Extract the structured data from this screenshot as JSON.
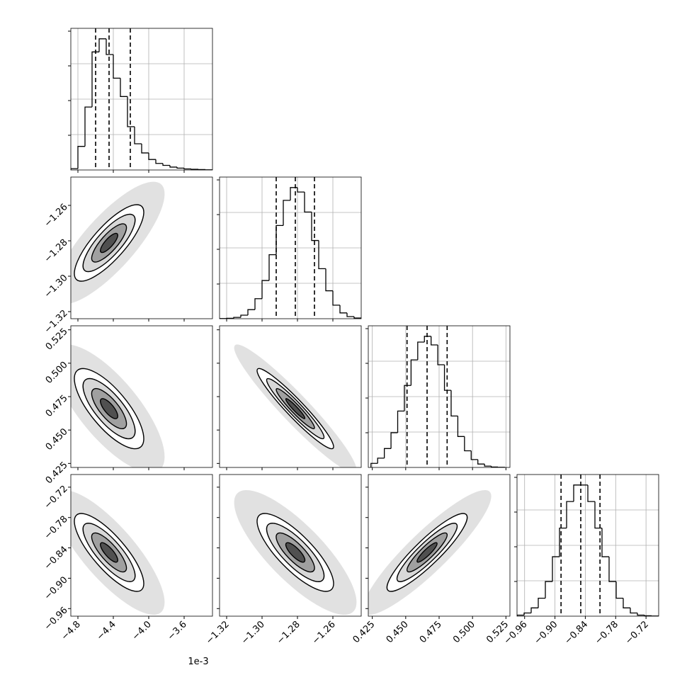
{
  "chart_data": {
    "type": "corner",
    "grid": true,
    "color": "#000000",
    "offset_label": "1e-3",
    "parameters": [
      {
        "xlim": [
          -4.88,
          -3.28
        ],
        "ticks": [
          {
            "value": -4.8,
            "label": "−4.8"
          },
          {
            "value": -4.4,
            "label": "−4.4"
          },
          {
            "value": -4.0,
            "label": "−4.0"
          },
          {
            "value": -3.6,
            "label": "−3.6"
          }
        ],
        "bins": [
          -4.88,
          -4.8,
          -4.72,
          -4.64,
          -4.56,
          -4.48,
          -4.4,
          -4.32,
          -4.24,
          -4.16,
          -4.08,
          -4.0,
          -3.92,
          -3.84,
          -3.76,
          -3.68,
          -3.6,
          -3.52,
          -3.44,
          -3.36,
          -3.28
        ],
        "counts": [
          10,
          180,
          480,
          900,
          1000,
          880,
          700,
          560,
          330,
          200,
          130,
          80,
          50,
          35,
          22,
          14,
          8,
          5,
          3,
          1
        ],
        "quantiles": [
          -4.6,
          -4.448,
          -4.208
        ]
      },
      {
        "xlim": [
          -1.324,
          -1.244
        ],
        "ticks": [
          {
            "value": -1.32,
            "label": "−1.32"
          },
          {
            "value": -1.3,
            "label": "−1.30"
          },
          {
            "value": -1.28,
            "label": "−1.28"
          },
          {
            "value": -1.26,
            "label": "−1.26"
          }
        ],
        "bins": [
          -1.324,
          -1.32,
          -1.316,
          -1.312,
          -1.308,
          -1.304,
          -1.3,
          -1.296,
          -1.292,
          -1.288,
          -1.284,
          -1.28,
          -1.276,
          -1.272,
          -1.268,
          -1.264,
          -1.26,
          -1.256,
          -1.252,
          -1.248,
          -1.244
        ],
        "counts": [
          1,
          3,
          10,
          27,
          69,
          152,
          290,
          486,
          708,
          899,
          996,
          962,
          810,
          594,
          380,
          212,
          103,
          44,
          16,
          5
        ],
        "quantiles": [
          -1.292,
          -1.2812,
          -1.2704
        ]
      },
      {
        "xlim": [
          0.422,
          0.528
        ],
        "ticks": [
          0.425,
          {
            "value": 0.45,
            "label": "0.450"
          },
          0.475,
          {
            "value": 0.5,
            "label": "0.500"
          },
          0.525
        ],
        "bins": [
          0.424,
          0.429,
          0.434,
          0.439,
          0.444,
          0.449,
          0.454,
          0.459,
          0.464,
          0.469,
          0.474,
          0.479,
          0.484,
          0.489,
          0.494,
          0.499,
          0.504,
          0.509,
          0.514,
          0.519,
          0.524
        ],
        "counts": [
          31,
          71,
          144,
          265,
          430,
          625,
          820,
          956,
          1000,
          934,
          783,
          588,
          392,
          236,
          127,
          60,
          26,
          10,
          3,
          1
        ],
        "quantiles": [
          0.451,
          0.466,
          0.481
        ]
      },
      {
        "xlim": [
          -0.975,
          -0.695
        ],
        "ticks": [
          {
            "value": -0.96,
            "label": "−0.96"
          },
          {
            "value": -0.9,
            "label": "−0.90"
          },
          {
            "value": -0.84,
            "label": "−0.84"
          },
          {
            "value": -0.78,
            "label": "−0.78"
          },
          {
            "value": -0.72,
            "label": "−0.72"
          }
        ],
        "bins": [
          -0.975,
          -0.961,
          -0.947,
          -0.933,
          -0.919,
          -0.905,
          -0.891,
          -0.877,
          -0.863,
          -0.849,
          -0.835,
          -0.821,
          -0.807,
          -0.793,
          -0.779,
          -0.765,
          -0.751,
          -0.737,
          -0.723,
          -0.709,
          -0.695
        ],
        "counts": [
          8,
          24,
          62,
          135,
          260,
          446,
          661,
          860,
          984,
          984,
          860,
          661,
          446,
          260,
          135,
          62,
          24,
          8,
          3,
          1
        ],
        "quantiles": [
          -0.888,
          -0.849,
          -0.811
        ]
      }
    ],
    "correlations": [
      [
        0.8
      ],
      [
        -0.75,
        -0.95
      ],
      [
        -0.8,
        -0.8,
        0.9
      ]
    ]
  }
}
